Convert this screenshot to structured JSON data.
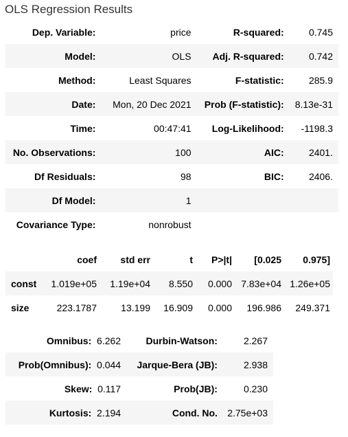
{
  "caption": "OLS Regression Results",
  "summary": [
    {
      "l1": "Dep. Variable:",
      "v1": "price",
      "l2": "R-squared:",
      "v2": "0.745"
    },
    {
      "l1": "Model:",
      "v1": "OLS",
      "l2": "Adj. R-squared:",
      "v2": "0.742"
    },
    {
      "l1": "Method:",
      "v1": "Least Squares",
      "l2": "F-statistic:",
      "v2": "285.9"
    },
    {
      "l1": "Date:",
      "v1": "Mon, 20 Dec 2021",
      "l2": "Prob (F-statistic):",
      "v2": "8.13e-31"
    },
    {
      "l1": "Time:",
      "v1": "00:47:41",
      "l2": "Log-Likelihood:",
      "v2": "-1198.3"
    },
    {
      "l1": "No. Observations:",
      "v1": "100",
      "l2": "AIC:",
      "v2": "2401."
    },
    {
      "l1": "Df Residuals:",
      "v1": "98",
      "l2": "BIC:",
      "v2": "2406."
    },
    {
      "l1": "Df Model:",
      "v1": "1",
      "l2": "",
      "v2": ""
    },
    {
      "l1": "Covariance Type:",
      "v1": "nonrobust",
      "l2": "",
      "v2": ""
    }
  ],
  "coef_table": {
    "headers": [
      "",
      "coef",
      "std err",
      "t",
      "P>|t|",
      "[0.025",
      "0.975]"
    ],
    "rows": [
      [
        "const",
        "1.019e+05",
        "1.19e+04",
        "8.550",
        "0.000",
        "7.83e+04",
        "1.26e+05"
      ],
      [
        "size",
        "223.1787",
        "13.199",
        "16.909",
        "0.000",
        "196.986",
        "249.371"
      ]
    ]
  },
  "diagnostics": [
    {
      "l1": "Omnibus:",
      "v1": "6.262",
      "l2": "Durbin-Watson:",
      "v2": "2.267"
    },
    {
      "l1": "Prob(Omnibus):",
      "v1": "0.044",
      "l2": "Jarque-Bera (JB):",
      "v2": "2.938"
    },
    {
      "l1": "Skew:",
      "v1": "0.117",
      "l2": "Prob(JB):",
      "v2": "0.230"
    },
    {
      "l1": "Kurtosis:",
      "v1": "2.194",
      "l2": "Cond. No.",
      "v2": "2.75e+03"
    }
  ]
}
